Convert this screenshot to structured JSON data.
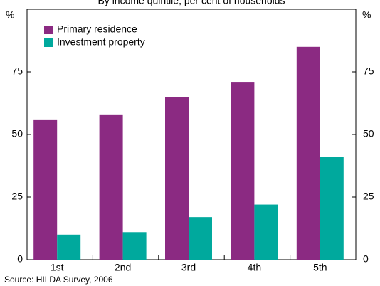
{
  "chart_data": {
    "type": "bar",
    "subtitle": "By income quintile, per cent of households",
    "y_unit": "%",
    "y2_unit": "%",
    "categories": [
      "1st",
      "2nd",
      "3rd",
      "4th",
      "5th"
    ],
    "series": [
      {
        "name": "Primary residence",
        "color": "#8b2a82",
        "values": [
          56,
          58,
          65,
          71,
          85
        ]
      },
      {
        "name": "Investment property",
        "color": "#00a99d",
        "values": [
          10,
          11,
          17,
          22,
          41
        ]
      }
    ],
    "ylim": [
      0,
      100
    ],
    "yticks": [
      0,
      25,
      50,
      75
    ],
    "y2lim": [
      0,
      100
    ],
    "y2ticks": [
      0,
      25,
      50,
      75
    ],
    "legend": "top-left",
    "source": "Source: HILDA Survey, 2006"
  }
}
